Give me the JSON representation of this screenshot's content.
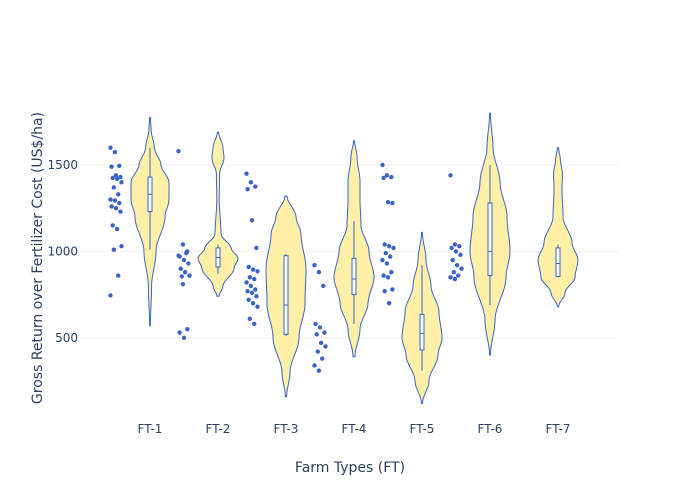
{
  "chart_data": {
    "type": "violin",
    "title": "",
    "xlabel": "Farm Types (FT)",
    "ylabel": "Gross Return over Fertilizer Cost (US$/ha)",
    "ylim": [
      150,
      1800
    ],
    "yticks": [
      500,
      1000,
      1500
    ],
    "grid": true,
    "legend": "none",
    "colors": {
      "fill": "#fff0a8",
      "line": "#3b63c7",
      "points": "#3b63c7",
      "grid": "#eef0f4",
      "text": "#2a3f5f"
    },
    "categories": [
      "FT-1",
      "FT-2",
      "FT-3",
      "FT-4",
      "FT-5",
      "FT-6",
      "FT-7"
    ],
    "violins": [
      {
        "name": "FT-1",
        "box": {
          "q1": 1230,
          "median": 1330,
          "q3": 1430,
          "low": 1010,
          "high": 1600
        },
        "profile": [
          [
            570,
            0.02
          ],
          [
            800,
            0.08
          ],
          [
            1000,
            0.3
          ],
          [
            1200,
            0.75
          ],
          [
            1300,
            0.95
          ],
          [
            1400,
            0.95
          ],
          [
            1500,
            0.55
          ],
          [
            1600,
            0.22
          ],
          [
            1700,
            0.06
          ],
          [
            1775,
            0.02
          ]
        ],
        "points": [
          1600,
          1575,
          1495,
          1490,
          1440,
          1430,
          1425,
          1420,
          1400,
          1370,
          1330,
          1300,
          1295,
          1280,
          1260,
          1250,
          1230,
          1150,
          1130,
          1030,
          1010,
          860,
          745
        ]
      },
      {
        "name": "FT-2",
        "box": {
          "q1": 910,
          "median": 965,
          "q3": 1020,
          "low": 870,
          "high": 1040
        },
        "profile": [
          [
            740,
            0.05
          ],
          [
            800,
            0.25
          ],
          [
            900,
            0.8
          ],
          [
            960,
            1.0
          ],
          [
            1020,
            0.65
          ],
          [
            1100,
            0.15
          ],
          [
            1300,
            0.06
          ],
          [
            1450,
            0.08
          ],
          [
            1540,
            0.3
          ],
          [
            1600,
            0.25
          ],
          [
            1690,
            0.03
          ]
        ],
        "points": [
          1580,
          1040,
          1000,
          970,
          950,
          930,
          900,
          880,
          860,
          855,
          990,
          975,
          810,
          550,
          530,
          500
        ]
      },
      {
        "name": "FT-3",
        "box": {
          "q1": 520,
          "median": 690,
          "q3": 975,
          "low": 510,
          "high": 985
        },
        "profile": [
          [
            160,
            0.03
          ],
          [
            300,
            0.2
          ],
          [
            500,
            0.65
          ],
          [
            700,
            0.95
          ],
          [
            900,
            1.0
          ],
          [
            1100,
            0.75
          ],
          [
            1200,
            0.5
          ],
          [
            1320,
            0.05
          ]
        ],
        "points": [
          1450,
          1400,
          1375,
          1360,
          1180,
          1020,
          910,
          895,
          885,
          850,
          840,
          820,
          800,
          780,
          770,
          760,
          740,
          720,
          700,
          680,
          610,
          580
        ]
      },
      {
        "name": "FT-4",
        "box": {
          "q1": 750,
          "median": 840,
          "q3": 960,
          "low": 580,
          "high": 1175
        },
        "profile": [
          [
            390,
            0.05
          ],
          [
            550,
            0.3
          ],
          [
            700,
            0.7
          ],
          [
            850,
            1.0
          ],
          [
            1000,
            0.75
          ],
          [
            1150,
            0.35
          ],
          [
            1300,
            0.3
          ],
          [
            1400,
            0.3
          ],
          [
            1550,
            0.15
          ],
          [
            1640,
            0.02
          ]
        ],
        "points": [
          920,
          880,
          800,
          580,
          560,
          530,
          520,
          470,
          450,
          420,
          380,
          340,
          310
        ]
      },
      {
        "name": "FT-5",
        "box": {
          "q1": 430,
          "median": 525,
          "q3": 635,
          "low": 310,
          "high": 920
        },
        "profile": [
          [
            120,
            0.02
          ],
          [
            250,
            0.35
          ],
          [
            400,
            0.8
          ],
          [
            500,
            1.0
          ],
          [
            650,
            0.85
          ],
          [
            800,
            0.45
          ],
          [
            950,
            0.2
          ],
          [
            1110,
            0.02
          ]
        ],
        "points": [
          1500,
          1440,
          1430,
          1425,
          1285,
          1280,
          1040,
          1030,
          1020,
          990,
          970,
          950,
          930,
          880,
          860,
          850,
          780,
          770,
          700
        ]
      },
      {
        "name": "FT-6",
        "box": {
          "q1": 860,
          "median": 1000,
          "q3": 1280,
          "low": 690,
          "high": 1500
        },
        "profile": [
          [
            400,
            0.02
          ],
          [
            600,
            0.25
          ],
          [
            850,
            0.8
          ],
          [
            1000,
            1.0
          ],
          [
            1200,
            0.85
          ],
          [
            1400,
            0.5
          ],
          [
            1600,
            0.15
          ],
          [
            1800,
            0.02
          ]
        ],
        "points": [
          1440,
          1040,
          1030,
          1020,
          1000,
          980,
          950,
          920,
          900,
          880,
          860,
          850,
          840
        ]
      },
      {
        "name": "FT-7",
        "box": {
          "q1": 855,
          "median": 930,
          "q3": 1020,
          "low": 850,
          "high": 1040
        },
        "profile": [
          [
            680,
            0.03
          ],
          [
            760,
            0.35
          ],
          [
            850,
            0.85
          ],
          [
            950,
            1.0
          ],
          [
            1050,
            0.7
          ],
          [
            1200,
            0.25
          ],
          [
            1350,
            0.2
          ],
          [
            1450,
            0.22
          ],
          [
            1530,
            0.12
          ],
          [
            1600,
            0.03
          ]
        ],
        "points": []
      }
    ]
  }
}
